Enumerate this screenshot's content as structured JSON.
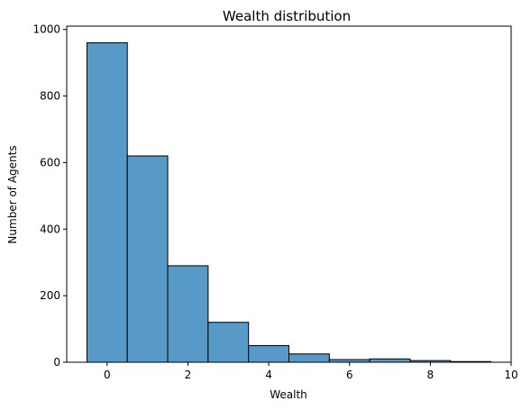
{
  "chart_data": {
    "type": "bar",
    "title": "Wealth distribution",
    "xlabel": "Wealth",
    "ylabel": "Number of Agents",
    "bar_color": "#5799c7",
    "edge_color": "#000000",
    "xlim": [
      -1,
      10
    ],
    "ylim": [
      0,
      1010
    ],
    "grid": false,
    "x_ticks": [
      0,
      2,
      4,
      6,
      8,
      10
    ],
    "y_ticks": [
      0,
      200,
      400,
      600,
      800,
      1000
    ],
    "bins": [
      {
        "x": 0,
        "value": 960
      },
      {
        "x": 1,
        "value": 620
      },
      {
        "x": 2,
        "value": 290
      },
      {
        "x": 3,
        "value": 120
      },
      {
        "x": 4,
        "value": 50
      },
      {
        "x": 5,
        "value": 25
      },
      {
        "x": 6,
        "value": 8
      },
      {
        "x": 7,
        "value": 10
      },
      {
        "x": 8,
        "value": 5
      },
      {
        "x": 9,
        "value": 2
      }
    ]
  }
}
